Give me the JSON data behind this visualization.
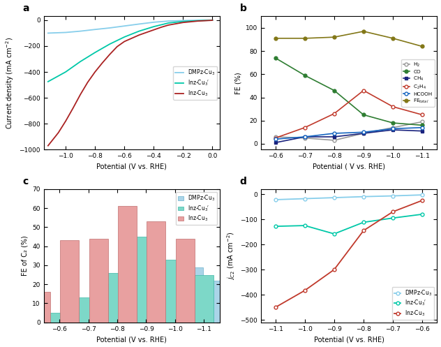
{
  "panel_a": {
    "xlabel": "Potential (V vs. RHE)",
    "ylabel": "Current density (mA cm⁻²)",
    "xlim": [
      -1.15,
      0.05
    ],
    "ylim": [
      -1000,
      30
    ],
    "yticks": [
      0,
      -200,
      -400,
      -600,
      -800,
      -1000
    ],
    "xticks": [
      -1.0,
      -0.8,
      -0.6,
      -0.4,
      -0.2,
      0.0
    ],
    "DMPz_x": [
      -1.12,
      -1.0,
      -0.9,
      -0.8,
      -0.7,
      -0.6,
      -0.5,
      -0.4,
      -0.3,
      -0.2,
      -0.1,
      0.0
    ],
    "DMPz_y": [
      -100,
      -95,
      -85,
      -72,
      -60,
      -45,
      -30,
      -16,
      -7,
      -3,
      -1,
      0
    ],
    "InzP_x": [
      -1.12,
      -1.0,
      -0.9,
      -0.8,
      -0.7,
      -0.6,
      -0.5,
      -0.4,
      -0.3,
      -0.2,
      -0.1,
      0.0
    ],
    "InzP_y": [
      -475,
      -400,
      -320,
      -250,
      -185,
      -130,
      -85,
      -50,
      -22,
      -10,
      -4,
      0
    ],
    "Inz_x": [
      -1.12,
      -1.05,
      -1.0,
      -0.95,
      -0.9,
      -0.85,
      -0.8,
      -0.75,
      -0.7,
      -0.65,
      -0.6,
      -0.55,
      -0.5,
      -0.45,
      -0.4,
      -0.35,
      -0.3,
      -0.2,
      -0.1,
      0.0
    ],
    "Inz_y": [
      -970,
      -870,
      -780,
      -680,
      -575,
      -480,
      -400,
      -330,
      -265,
      -205,
      -165,
      -140,
      -115,
      -95,
      -75,
      -55,
      -38,
      -18,
      -7,
      -1
    ],
    "DMPz_color": "#87ceeb",
    "InzP_color": "#00c8a8",
    "Inz_color": "#aa2222",
    "legend": [
      "DMPz-Cu₃",
      "Inz-Cu₃'",
      "Inz-Cu₃"
    ]
  },
  "panel_b": {
    "xlabel": "Potential ( V vs. RHE)",
    "ylabel": "FE (%)",
    "xlim": [
      -0.55,
      -1.15
    ],
    "ylim": [
      -5,
      110
    ],
    "xticks": [
      -0.6,
      -0.7,
      -0.8,
      -0.9,
      -1.0,
      -1.1
    ],
    "yticks": [
      0,
      20,
      40,
      60,
      80,
      100
    ],
    "H2_x": [
      -0.6,
      -0.7,
      -0.8,
      -0.9,
      -1.0,
      -1.1
    ],
    "H2_y": [
      6,
      5,
      3,
      9,
      14,
      19
    ],
    "CO_x": [
      -0.6,
      -0.7,
      -0.8,
      -0.9,
      -1.0,
      -1.1
    ],
    "CO_y": [
      74,
      59,
      46,
      25,
      18,
      16
    ],
    "CH4_x": [
      -0.6,
      -0.7,
      -0.8,
      -0.9,
      -1.0,
      -1.1
    ],
    "CH4_y": [
      1,
      6,
      6,
      9,
      12,
      11
    ],
    "C2H4_x": [
      -0.6,
      -0.7,
      -0.8,
      -0.9,
      -1.0,
      -1.1
    ],
    "C2H4_y": [
      5,
      14,
      26,
      46,
      32,
      25
    ],
    "HCOOH_x": [
      -0.6,
      -0.7,
      -0.8,
      -0.9,
      -1.0,
      -1.1
    ],
    "HCOOH_y": [
      4,
      6,
      9,
      10,
      13,
      14
    ],
    "FEtotal_x": [
      -0.6,
      -0.7,
      -0.8,
      -0.9,
      -1.0,
      -1.1
    ],
    "FEtotal_y": [
      91,
      91,
      92,
      97,
      91,
      84
    ],
    "H2_color": "#999999",
    "CO_color": "#2e7d32",
    "CH4_color": "#1a237e",
    "C2H4_color": "#c0392b",
    "HCOOH_color": "#1565c0",
    "FEtotal_color": "#827717"
  },
  "panel_c": {
    "xlabel": "Potential (V vs. RHE)",
    "ylabel": "FE of C₂ (%)",
    "xlim": [
      -0.545,
      -1.155
    ],
    "ylim": [
      0,
      70
    ],
    "xticks": [
      -0.6,
      -0.7,
      -0.8,
      -0.9,
      -1.0,
      -1.1
    ],
    "yticks": [
      0,
      10,
      20,
      30,
      40,
      50,
      60,
      70
    ],
    "categories": [
      -0.6,
      -0.7,
      -0.8,
      -0.9,
      -1.0,
      -1.1
    ],
    "DMPz_vals": [
      5,
      20,
      26,
      29,
      29,
      22
    ],
    "InzP_vals": [
      5,
      13,
      26,
      45,
      33,
      25
    ],
    "Inz_vals": [
      16,
      43,
      44,
      61,
      53,
      44
    ],
    "DMPz_color": "#aad4e8",
    "InzP_color": "#7dd8c8",
    "Inz_color": "#e8a0a0",
    "DMPz_edge": "#6ab0cc",
    "InzP_edge": "#40b8a8",
    "Inz_edge": "#c07070",
    "bar_width": 0.065
  },
  "panel_d": {
    "xlabel": "Potential (V vs. RHE)",
    "ylabel": "j_{C2} (mA cm⁻²)",
    "xlim": [
      -1.15,
      -0.55
    ],
    "ylim": [
      -510,
      20
    ],
    "xticks": [
      -1.1,
      -1.0,
      -0.9,
      -0.8,
      -0.7,
      -0.6
    ],
    "yticks": [
      0,
      -100,
      -200,
      -300,
      -400,
      -500
    ],
    "DMPz_x": [
      -1.1,
      -1.0,
      -0.9,
      -0.8,
      -0.7,
      -0.6
    ],
    "DMPz_y": [
      -22,
      -18,
      -14,
      -10,
      -7,
      -3
    ],
    "InzP_x": [
      -1.1,
      -1.0,
      -0.9,
      -0.8,
      -0.7,
      -0.6
    ],
    "InzP_y": [
      -128,
      -125,
      -158,
      -112,
      -95,
      -80
    ],
    "Inz_x": [
      -1.1,
      -1.0,
      -0.9,
      -0.8,
      -0.7,
      -0.6
    ],
    "Inz_y": [
      -450,
      -383,
      -300,
      -145,
      -70,
      -25
    ],
    "DMPz_color": "#87ceeb",
    "InzP_color": "#00c8a8",
    "Inz_color": "#c0392b"
  }
}
